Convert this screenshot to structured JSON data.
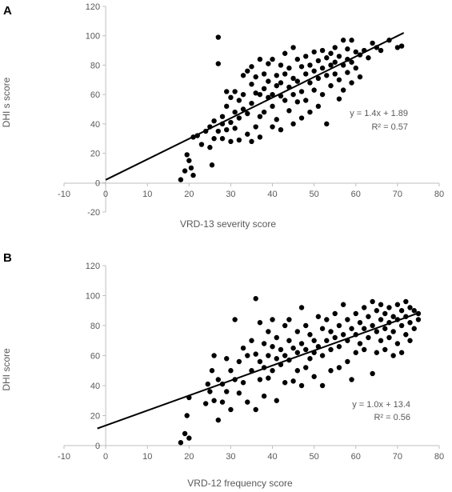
{
  "chart_data": [
    {
      "type": "scatter",
      "panel_label": "A",
      "xlabel": "VRD-13  severity score",
      "ylabel": "DHI  s score",
      "xlim": [
        -10,
        80
      ],
      "ylim": [
        -20,
        120
      ],
      "xticks": [
        -10,
        0,
        10,
        20,
        30,
        40,
        50,
        60,
        70,
        80
      ],
      "yticks": [
        -20,
        0,
        20,
        40,
        60,
        80,
        100,
        120
      ],
      "grid": false,
      "legend": "none",
      "trendline": {
        "slope": 1.4,
        "intercept": 1.89,
        "x_range": [
          0,
          71.5
        ]
      },
      "annotation": {
        "equation": "y = 1.4x + 1.89",
        "r2": "R² = 0.57"
      },
      "points": [
        [
          18,
          2
        ],
        [
          19,
          8
        ],
        [
          19.5,
          19
        ],
        [
          20,
          15
        ],
        [
          20.5,
          10
        ],
        [
          21,
          5
        ],
        [
          21,
          31
        ],
        [
          22,
          32
        ],
        [
          23,
          26
        ],
        [
          24,
          35
        ],
        [
          25,
          38
        ],
        [
          25,
          24
        ],
        [
          25.5,
          12
        ],
        [
          26,
          30
        ],
        [
          26,
          42
        ],
        [
          27,
          99
        ],
        [
          27,
          81
        ],
        [
          27,
          35
        ],
        [
          28,
          40
        ],
        [
          28,
          45
        ],
        [
          28,
          30
        ],
        [
          29,
          36
        ],
        [
          29,
          52
        ],
        [
          29,
          62
        ],
        [
          30,
          58
        ],
        [
          30,
          41
        ],
        [
          30,
          28
        ],
        [
          31,
          48
        ],
        [
          31,
          62
        ],
        [
          31,
          37
        ],
        [
          32,
          44
        ],
        [
          32,
          56
        ],
        [
          32,
          29
        ],
        [
          33,
          60
        ],
        [
          33,
          73
        ],
        [
          33,
          50
        ],
        [
          34,
          76
        ],
        [
          34,
          47
        ],
        [
          34,
          33
        ],
        [
          35,
          79
        ],
        [
          35,
          67
        ],
        [
          35,
          54
        ],
        [
          35,
          28
        ],
        [
          36,
          72
        ],
        [
          36,
          38
        ],
        [
          36,
          61
        ],
        [
          37,
          84
        ],
        [
          37,
          45
        ],
        [
          37,
          60
        ],
        [
          37,
          31
        ],
        [
          38,
          74
        ],
        [
          38,
          64
        ],
        [
          38,
          48
        ],
        [
          39,
          81
        ],
        [
          39,
          58
        ],
        [
          39,
          69
        ],
        [
          40,
          60
        ],
        [
          40,
          52
        ],
        [
          40,
          38
        ],
        [
          40,
          84
        ],
        [
          41,
          73
        ],
        [
          41,
          66
        ],
        [
          41,
          43
        ],
        [
          42,
          80
        ],
        [
          42,
          68
        ],
        [
          42,
          36
        ],
        [
          42,
          59
        ],
        [
          43,
          74
        ],
        [
          43,
          56
        ],
        [
          43,
          88
        ],
        [
          44,
          65
        ],
        [
          44,
          49
        ],
        [
          44,
          78
        ],
        [
          45,
          71
        ],
        [
          45,
          92
        ],
        [
          45,
          60
        ],
        [
          45,
          40
        ],
        [
          46,
          84
        ],
        [
          46,
          69
        ],
        [
          46,
          55
        ],
        [
          47,
          79
        ],
        [
          47,
          62
        ],
        [
          47,
          44
        ],
        [
          48,
          86
        ],
        [
          48,
          74
        ],
        [
          48,
          56
        ],
        [
          49,
          80
        ],
        [
          49,
          68
        ],
        [
          49,
          48
        ],
        [
          50,
          89
        ],
        [
          50,
          76
        ],
        [
          50,
          63
        ],
        [
          51,
          83
        ],
        [
          51,
          71
        ],
        [
          51,
          52
        ],
        [
          52,
          90
        ],
        [
          52,
          78
        ],
        [
          52,
          60
        ],
        [
          53,
          85
        ],
        [
          53,
          73
        ],
        [
          53,
          40
        ],
        [
          54,
          88
        ],
        [
          54,
          80
        ],
        [
          54,
          66
        ],
        [
          55,
          82
        ],
        [
          55,
          92
        ],
        [
          55,
          74
        ],
        [
          56,
          86
        ],
        [
          56,
          70
        ],
        [
          56,
          57
        ],
        [
          57,
          97
        ],
        [
          57,
          80
        ],
        [
          57,
          63
        ],
        [
          58,
          91
        ],
        [
          58,
          84
        ],
        [
          58,
          75
        ],
        [
          59,
          97
        ],
        [
          59,
          82
        ],
        [
          59,
          68
        ],
        [
          60,
          89
        ],
        [
          60,
          78
        ],
        [
          61,
          87
        ],
        [
          61,
          72
        ],
        [
          62,
          90
        ],
        [
          63,
          85
        ],
        [
          64,
          95
        ],
        [
          65,
          92
        ],
        [
          66,
          90
        ],
        [
          68,
          97
        ],
        [
          70,
          92
        ],
        [
          71,
          93
        ]
      ]
    },
    {
      "type": "scatter",
      "panel_label": "B",
      "xlabel": "VRD-12  frequency score",
      "ylabel": "DHI   score",
      "xlim": [
        -10,
        80
      ],
      "ylim": [
        0,
        120
      ],
      "xticks": [
        -10,
        0,
        10,
        20,
        30,
        40,
        50,
        60,
        70,
        80
      ],
      "yticks": [
        0,
        20,
        40,
        60,
        80,
        100,
        120
      ],
      "grid": false,
      "legend": "none",
      "trendline": {
        "slope": 1.0,
        "intercept": 13.4,
        "x_range": [
          -2,
          75
        ]
      },
      "annotation": {
        "equation": "y = 1.0x + 13.4",
        "r2": "R² = 0.56"
      },
      "points": [
        [
          18,
          2
        ],
        [
          19,
          8
        ],
        [
          19.5,
          20
        ],
        [
          20,
          5
        ],
        [
          20,
          32
        ],
        [
          24,
          28
        ],
        [
          24.5,
          41
        ],
        [
          25,
          36
        ],
        [
          25.5,
          50
        ],
        [
          26,
          60
        ],
        [
          26,
          30
        ],
        [
          27,
          44
        ],
        [
          27,
          17
        ],
        [
          28,
          41
        ],
        [
          28,
          29
        ],
        [
          29,
          58
        ],
        [
          29,
          36
        ],
        [
          30,
          50
        ],
        [
          30,
          24
        ],
        [
          31,
          84
        ],
        [
          31,
          44
        ],
        [
          32,
          56
        ],
        [
          32,
          35
        ],
        [
          33,
          65
        ],
        [
          33,
          42
        ],
        [
          34,
          60
        ],
        [
          34,
          29
        ],
        [
          35,
          70
        ],
        [
          35,
          50
        ],
        [
          36,
          98
        ],
        [
          36,
          61
        ],
        [
          36,
          24
        ],
        [
          37,
          82
        ],
        [
          37,
          56
        ],
        [
          37,
          44
        ],
        [
          38,
          68
        ],
        [
          38,
          52
        ],
        [
          38,
          33
        ],
        [
          39,
          76
        ],
        [
          39,
          60
        ],
        [
          39,
          45
        ],
        [
          40,
          84
        ],
        [
          40,
          66
        ],
        [
          40,
          50
        ],
        [
          41,
          72
        ],
        [
          41,
          58
        ],
        [
          41,
          30
        ],
        [
          42,
          64
        ],
        [
          42,
          54
        ],
        [
          43,
          80
        ],
        [
          43,
          60
        ],
        [
          43,
          42
        ],
        [
          44,
          84
        ],
        [
          44,
          70
        ],
        [
          44,
          57
        ],
        [
          45,
          65
        ],
        [
          45,
          43
        ],
        [
          46,
          76
        ],
        [
          46,
          62
        ],
        [
          46,
          50
        ],
        [
          47,
          92
        ],
        [
          47,
          68
        ],
        [
          47,
          40
        ],
        [
          48,
          80
        ],
        [
          48,
          64
        ],
        [
          48,
          52
        ],
        [
          49,
          74
        ],
        [
          49,
          58
        ],
        [
          50,
          70
        ],
        [
          50,
          62
        ],
        [
          50,
          46
        ],
        [
          51,
          86
        ],
        [
          51,
          66
        ],
        [
          52,
          78
        ],
        [
          52,
          60
        ],
        [
          52,
          40
        ],
        [
          53,
          84
        ],
        [
          53,
          70
        ],
        [
          54,
          76
        ],
        [
          54,
          64
        ],
        [
          54,
          50
        ],
        [
          55,
          88
        ],
        [
          55,
          72
        ],
        [
          56,
          80
        ],
        [
          56,
          66
        ],
        [
          56,
          52
        ],
        [
          57,
          94
        ],
        [
          57,
          74
        ],
        [
          58,
          84
        ],
        [
          58,
          70
        ],
        [
          58,
          56
        ],
        [
          59,
          78
        ],
        [
          59,
          44
        ],
        [
          60,
          88
        ],
        [
          60,
          74
        ],
        [
          60,
          62
        ],
        [
          61,
          82
        ],
        [
          61,
          68
        ],
        [
          62,
          92
        ],
        [
          62,
          78
        ],
        [
          62,
          64
        ],
        [
          63,
          86
        ],
        [
          63,
          72
        ],
        [
          64,
          96
        ],
        [
          64,
          80
        ],
        [
          64,
          48
        ],
        [
          65,
          90
        ],
        [
          65,
          76
        ],
        [
          65,
          62
        ],
        [
          66,
          94
        ],
        [
          66,
          84
        ],
        [
          66,
          70
        ],
        [
          67,
          88
        ],
        [
          67,
          78
        ],
        [
          67,
          64
        ],
        [
          68,
          92
        ],
        [
          68,
          82
        ],
        [
          68,
          72
        ],
        [
          69,
          86
        ],
        [
          69,
          76
        ],
        [
          69,
          60
        ],
        [
          70,
          94
        ],
        [
          70,
          84
        ],
        [
          70,
          68
        ],
        [
          71,
          90
        ],
        [
          71,
          80
        ],
        [
          71,
          62
        ],
        [
          72,
          96
        ],
        [
          72,
          86
        ],
        [
          72,
          74
        ],
        [
          73,
          92
        ],
        [
          73,
          82
        ],
        [
          73,
          70
        ],
        [
          74,
          90
        ],
        [
          74,
          78
        ],
        [
          75,
          88
        ],
        [
          75,
          84
        ]
      ]
    }
  ]
}
